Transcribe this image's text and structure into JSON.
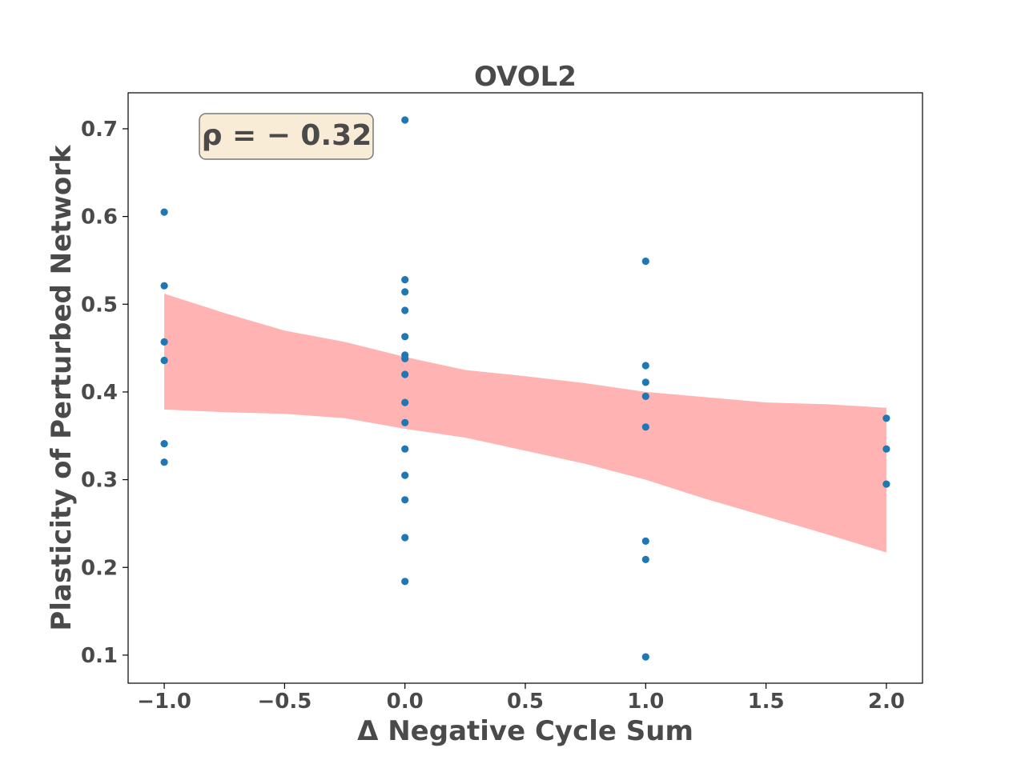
{
  "chart_data": {
    "type": "scatter",
    "title": "OVOL2",
    "xlabel": "Δ Negative Cycle Sum",
    "ylabel": "Plasticity of Perturbed Network",
    "xlim": [
      -1.15,
      2.15
    ],
    "ylim": [
      0.068,
      0.741
    ],
    "xticks": [
      -1.0,
      -0.5,
      0.0,
      0.5,
      1.0,
      1.5,
      2.0
    ],
    "xtick_labels": [
      "−1.0",
      "−0.5",
      "0.0",
      "0.5",
      "1.0",
      "1.5",
      "2.0"
    ],
    "yticks": [
      0.1,
      0.2,
      0.3,
      0.4,
      0.5,
      0.6,
      0.7
    ],
    "ytick_labels": [
      "0.1",
      "0.2",
      "0.3",
      "0.4",
      "0.5",
      "0.6",
      "0.7"
    ],
    "grid": false,
    "annotation": {
      "text": "ρ = − 0.32",
      "position": "top-left",
      "background": "#f8ecd6",
      "border": "#777777"
    },
    "points_color": "#1f77b4",
    "band_color": "#ffb3b3",
    "points": [
      {
        "x": -1,
        "y": 0.605
      },
      {
        "x": -1,
        "y": 0.521
      },
      {
        "x": -1,
        "y": 0.457
      },
      {
        "x": -1,
        "y": 0.436
      },
      {
        "x": -1,
        "y": 0.341
      },
      {
        "x": -1,
        "y": 0.32
      },
      {
        "x": 0,
        "y": 0.71
      },
      {
        "x": 0,
        "y": 0.528
      },
      {
        "x": 0,
        "y": 0.514
      },
      {
        "x": 0,
        "y": 0.493
      },
      {
        "x": 0,
        "y": 0.463
      },
      {
        "x": 0,
        "y": 0.442
      },
      {
        "x": 0,
        "y": 0.438
      },
      {
        "x": 0,
        "y": 0.42
      },
      {
        "x": 0,
        "y": 0.388
      },
      {
        "x": 0,
        "y": 0.365
      },
      {
        "x": 0,
        "y": 0.335
      },
      {
        "x": 0,
        "y": 0.305
      },
      {
        "x": 0,
        "y": 0.277
      },
      {
        "x": 0,
        "y": 0.234
      },
      {
        "x": 0,
        "y": 0.184
      },
      {
        "x": 1,
        "y": 0.549
      },
      {
        "x": 1,
        "y": 0.43
      },
      {
        "x": 1,
        "y": 0.411
      },
      {
        "x": 1,
        "y": 0.395
      },
      {
        "x": 1,
        "y": 0.36
      },
      {
        "x": 1,
        "y": 0.23
      },
      {
        "x": 1,
        "y": 0.209
      },
      {
        "x": 1,
        "y": 0.098
      },
      {
        "x": 2,
        "y": 0.37
      },
      {
        "x": 2,
        "y": 0.335
      },
      {
        "x": 2,
        "y": 0.295
      }
    ],
    "confidence_band": {
      "upper": [
        {
          "x": -1.0,
          "y": 0.512
        },
        {
          "x": -0.75,
          "y": 0.49
        },
        {
          "x": -0.5,
          "y": 0.47
        },
        {
          "x": -0.25,
          "y": 0.457
        },
        {
          "x": 0.0,
          "y": 0.44
        },
        {
          "x": 0.25,
          "y": 0.425
        },
        {
          "x": 0.5,
          "y": 0.418
        },
        {
          "x": 0.75,
          "y": 0.41
        },
        {
          "x": 1.0,
          "y": 0.4
        },
        {
          "x": 1.25,
          "y": 0.394
        },
        {
          "x": 1.5,
          "y": 0.388
        },
        {
          "x": 1.75,
          "y": 0.386
        },
        {
          "x": 2.0,
          "y": 0.382
        }
      ],
      "lower": [
        {
          "x": -1.0,
          "y": 0.38
        },
        {
          "x": -0.75,
          "y": 0.377
        },
        {
          "x": -0.5,
          "y": 0.375
        },
        {
          "x": -0.25,
          "y": 0.37
        },
        {
          "x": 0.0,
          "y": 0.358
        },
        {
          "x": 0.25,
          "y": 0.348
        },
        {
          "x": 0.5,
          "y": 0.333
        },
        {
          "x": 0.75,
          "y": 0.318
        },
        {
          "x": 1.0,
          "y": 0.3
        },
        {
          "x": 1.25,
          "y": 0.278
        },
        {
          "x": 1.5,
          "y": 0.258
        },
        {
          "x": 1.75,
          "y": 0.238
        },
        {
          "x": 2.0,
          "y": 0.217
        }
      ]
    }
  }
}
